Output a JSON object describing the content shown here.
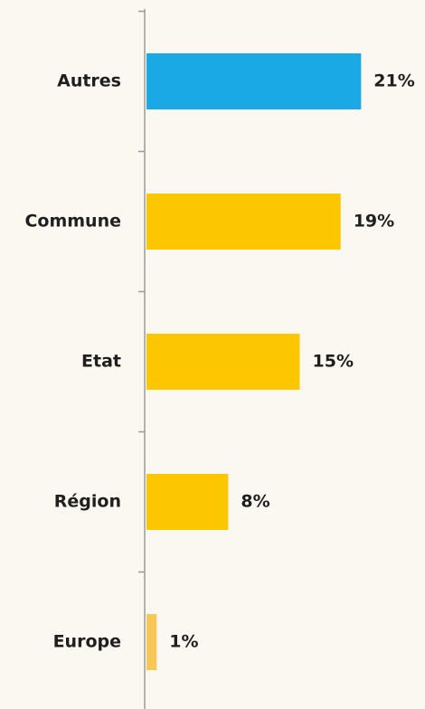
{
  "chart_data": {
    "type": "bar",
    "orientation": "horizontal",
    "categories": [
      "Autres",
      "Commune",
      "Etat",
      "Région",
      "Europe"
    ],
    "values": [
      21,
      19,
      15,
      8,
      1
    ],
    "value_labels": [
      "21%",
      "19%",
      "15%",
      "8%",
      "1%"
    ],
    "title": "",
    "xlabel": "",
    "ylabel": "",
    "xlim": [
      0,
      25
    ],
    "grid": false,
    "legend": "none",
    "colors": {
      "highlight": "#1aa9e4",
      "default": "#fcc700",
      "small": "#f8c755",
      "axis": "#9a9a9a",
      "background": "#fbf8f1"
    },
    "highlight_index": 0
  }
}
